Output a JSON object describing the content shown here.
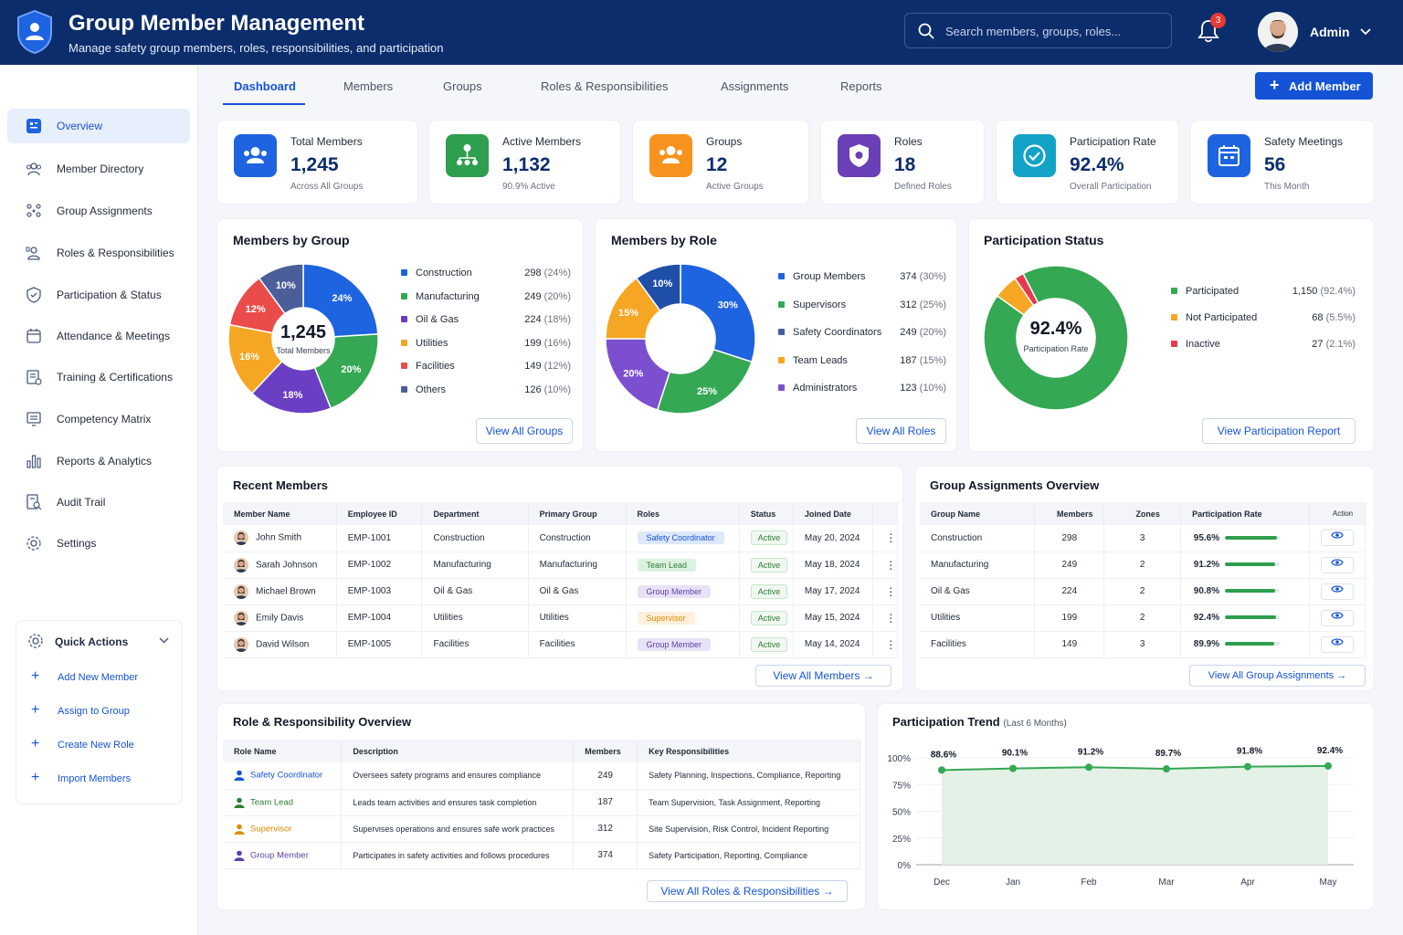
{
  "app": {
    "title": "Group Member Management",
    "subtitle": "Manage safety group members, roles, responsibilities, and participation"
  },
  "search": {
    "placeholder": "Search members, groups, roles..."
  },
  "notifications": {
    "count": "3"
  },
  "user": {
    "name": "Admin"
  },
  "sidebar": {
    "items": [
      {
        "label": "Overview",
        "icon": "overview-icon"
      },
      {
        "label": "Member Directory",
        "icon": "members-icon"
      },
      {
        "label": "Group Assignments",
        "icon": "group-icon"
      },
      {
        "label": "Roles & Responsibilities",
        "icon": "roles-icon"
      },
      {
        "label": "Participation & Status",
        "icon": "shield-icon"
      },
      {
        "label": "Attendance & Meetings",
        "icon": "calendar-icon"
      },
      {
        "label": "Training & Certifications",
        "icon": "training-icon"
      },
      {
        "label": "Competency Matrix",
        "icon": "matrix-icon"
      },
      {
        "label": "Reports & Analytics",
        "icon": "chart-icon"
      },
      {
        "label": "Audit Trail",
        "icon": "audit-icon"
      },
      {
        "label": "Settings",
        "icon": "gear-icon"
      }
    ]
  },
  "quick_actions": {
    "title": "Quick Actions",
    "items": [
      "Add New Member",
      "Assign to Group",
      "Create New Role",
      "Import Members"
    ]
  },
  "tabs": [
    "Dashboard",
    "Members",
    "Groups",
    "Roles & Responsibilities",
    "Assignments",
    "Reports"
  ],
  "add_member_label": "Add Member",
  "kpis": [
    {
      "label": "Total Members",
      "value": "1,245",
      "sub": "Across All Groups",
      "color": "#1e63e0"
    },
    {
      "label": "Active Members",
      "value": "1,132",
      "sub": "90.9% Active",
      "color": "#2e9e4f"
    },
    {
      "label": "Groups",
      "value": "12",
      "sub": "Active Groups",
      "color": "#f7931e"
    },
    {
      "label": "Roles",
      "value": "18",
      "sub": "Defined Roles",
      "color": "#6a3fb8"
    },
    {
      "label": "Participation Rate",
      "value": "92.4%",
      "sub": "Overall Participation",
      "color": "#12a3c7"
    },
    {
      "label": "Safety Meetings",
      "value": "56",
      "sub": "This Month",
      "color": "#1e63e0"
    }
  ],
  "members_by_group": {
    "title": "Members by Group",
    "center_value": "1,245",
    "center_label": "Total Members",
    "button": "View All Groups",
    "legend": [
      {
        "name": "Construction",
        "value": "298",
        "pct": "(24%)",
        "color": "#1e63e0"
      },
      {
        "name": "Manufacturing",
        "value": "249",
        "pct": "(20%)",
        "color": "#34a853"
      },
      {
        "name": "Oil & Gas",
        "value": "224",
        "pct": "(18%)",
        "color": "#6a3fc4"
      },
      {
        "name": "Utilities",
        "value": "199",
        "pct": "(16%)",
        "color": "#f5a623"
      },
      {
        "name": "Facilities",
        "value": "149",
        "pct": "(12%)",
        "color": "#ea4c4c"
      },
      {
        "name": "Others",
        "value": "126",
        "pct": "(10%)",
        "color": "#4a5e9a"
      }
    ],
    "slices": [
      24,
      20,
      18,
      16,
      12,
      10
    ],
    "slice_labels": [
      "24%",
      "20%",
      "18%",
      "16%",
      "12%",
      "10%"
    ]
  },
  "members_by_role": {
    "title": "Members by Role",
    "button": "View All Roles",
    "legend": [
      {
        "name": "Group Members",
        "value": "374",
        "pct": "(30%)",
        "color": "#1e63e0"
      },
      {
        "name": "Supervisors",
        "value": "312",
        "pct": "(25%)",
        "color": "#34a853"
      },
      {
        "name": "Safety Coordinators",
        "value": "249",
        "pct": "(20%)",
        "color": "#4a5e9a"
      },
      {
        "name": "Team Leads",
        "value": "187",
        "pct": "(15%)",
        "color": "#f5a623"
      },
      {
        "name": "Administrators",
        "value": "123",
        "pct": "(10%)",
        "color": "#7b4fd0"
      }
    ],
    "slices": [
      30,
      25,
      20,
      15,
      10
    ],
    "slice_colors": [
      "#1e63e0",
      "#34a853",
      "#7b4fd0",
      "#f5a623",
      "#1f4fa8"
    ],
    "slice_labels": [
      "30%",
      "25%",
      "20%",
      "15%",
      "10%"
    ]
  },
  "participation_status": {
    "title": "Participation Status",
    "center_value": "92.4%",
    "center_label": "Participation Rate",
    "button": "View Participation Report",
    "legend": [
      {
        "name": "Participated",
        "value": "1,150",
        "pct": "(92.4%)",
        "color": "#34a853"
      },
      {
        "name": "Not Participated",
        "value": "68",
        "pct": "(5.5%)",
        "color": "#f5a623"
      },
      {
        "name": "Inactive",
        "value": "27",
        "pct": "(2.1%)",
        "color": "#e53950"
      }
    ],
    "slices": [
      92.4,
      5.5,
      2.1
    ]
  },
  "recent_members": {
    "title": "Recent Members",
    "button": "View All Members",
    "columns": [
      "Member Name",
      "Employee ID",
      "Department",
      "Primary Group",
      "Roles",
      "Status",
      "Joined Date"
    ],
    "rows": [
      {
        "name": "John Smith",
        "id": "EMP-1001",
        "dept": "Construction",
        "group": "Construction",
        "role": "Safety Coordinator",
        "role_bg": "#dde8fb",
        "role_fg": "#1553d6",
        "status": "Active",
        "date": "May 20, 2024"
      },
      {
        "name": "Sarah Johnson",
        "id": "EMP-1002",
        "dept": "Manufacturing",
        "group": "Manufacturing",
        "role": "Team Lead",
        "role_bg": "#dcf2e1",
        "role_fg": "#2e7d32",
        "status": "Active",
        "date": "May 18, 2024"
      },
      {
        "name": "Michael Brown",
        "id": "EMP-1003",
        "dept": "Oil & Gas",
        "group": "Oil & Gas",
        "role": "Group Member",
        "role_bg": "#e7e2f7",
        "role_fg": "#5b3ea8",
        "status": "Active",
        "date": "May 17, 2024"
      },
      {
        "name": "Emily Davis",
        "id": "EMP-1004",
        "dept": "Utilities",
        "group": "Utilities",
        "role": "Supervisor",
        "role_bg": "#fdf0dc",
        "role_fg": "#e08a00",
        "status": "Active",
        "date": "May 15, 2024"
      },
      {
        "name": "David Wilson",
        "id": "EMP-1005",
        "dept": "Facilities",
        "group": "Facilities",
        "role": "Group Member",
        "role_bg": "#e7e2f7",
        "role_fg": "#5b3ea8",
        "status": "Active",
        "date": "May 14, 2024"
      }
    ]
  },
  "group_assignments": {
    "title": "Group Assignments Overview",
    "button": "View All Group Assignments",
    "columns": [
      "Group Name",
      "Members",
      "Zones",
      "Participation Rate",
      "Action"
    ],
    "rows": [
      {
        "group": "Construction",
        "members": "298",
        "zones": "3",
        "rate": "95.6%",
        "fill": 0.956
      },
      {
        "group": "Manufacturing",
        "members": "249",
        "zones": "2",
        "rate": "91.2%",
        "fill": 0.912
      },
      {
        "group": "Oil & Gas",
        "members": "224",
        "zones": "2",
        "rate": "90.8%",
        "fill": 0.908
      },
      {
        "group": "Utilities",
        "members": "199",
        "zones": "2",
        "rate": "92.4%",
        "fill": 0.924
      },
      {
        "group": "Facilities",
        "members": "149",
        "zones": "3",
        "rate": "89.9%",
        "fill": 0.899
      }
    ]
  },
  "roles_overview": {
    "title": "Role & Responsibility Overview",
    "button": "View All Roles & Responsibilities",
    "columns": [
      "Role Name",
      "Description",
      "Members",
      "Key Responsibilities"
    ],
    "rows": [
      {
        "role": "Safety Coordinator",
        "color": "#1553d6",
        "desc": "Oversees safety programs and ensures compliance",
        "members": "249",
        "resp": "Safety Planning, Inspections, Compliance, Reporting"
      },
      {
        "role": "Team Lead",
        "color": "#2e7d32",
        "desc": "Leads team activities and ensures task completion",
        "members": "187",
        "resp": "Team Supervision, Task Assignment, Reporting"
      },
      {
        "role": "Supervisor",
        "color": "#e08a00",
        "desc": "Supervises operations and ensures safe work practices",
        "members": "312",
        "resp": "Site Supervision, Risk Control, Incident Reporting"
      },
      {
        "role": "Group Member",
        "color": "#5b3ea8",
        "desc": "Participates in safety activities and follows procedures",
        "members": "374",
        "resp": "Safety Participation, Reporting, Compliance"
      }
    ]
  },
  "participation_trend": {
    "title": "Participation Trend",
    "subtitle": "(Last 6 Months)"
  },
  "chart_data": {
    "type": "area",
    "title": "Participation Trend",
    "subtitle": "(Last 6 Months)",
    "categories": [
      "Dec",
      "Jan",
      "Feb",
      "Mar",
      "Apr",
      "May"
    ],
    "values": [
      88.6,
      90.1,
      91.2,
      89.7,
      91.8,
      92.4
    ],
    "value_labels": [
      "88.6%",
      "90.1%",
      "91.2%",
      "89.7%",
      "91.8%",
      "92.4%"
    ],
    "ylim": [
      0,
      100
    ],
    "yticks": [
      "100%",
      "75%",
      "50%",
      "25%",
      "0%"
    ],
    "grid": true,
    "color": "#34a853"
  }
}
